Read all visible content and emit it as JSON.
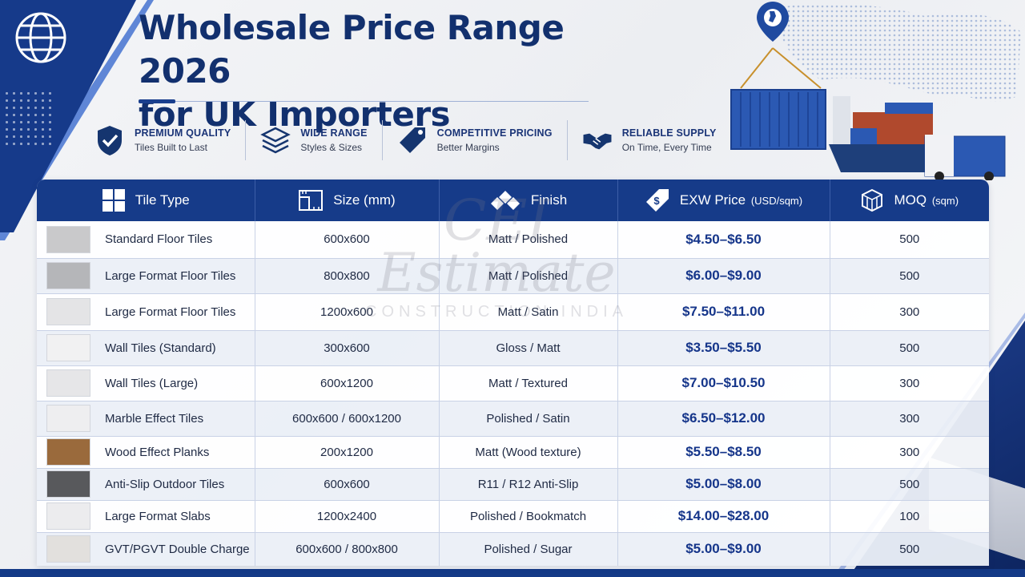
{
  "header": {
    "title_line1": "Wholesale Price Range 2026",
    "title_line2": "for UK Importers"
  },
  "features": [
    {
      "icon": "shield-check-icon",
      "title": "PREMIUM QUALITY",
      "subtitle": "Tiles Built to Last"
    },
    {
      "icon": "layers-icon",
      "title": "WIDE RANGE",
      "subtitle": "Styles & Sizes"
    },
    {
      "icon": "price-tag-icon",
      "title": "COMPETITIVE PRICING",
      "subtitle": "Better Margins"
    },
    {
      "icon": "handshake-icon",
      "title": "RELIABLE SUPPLY",
      "subtitle": "On Time, Every Time"
    }
  ],
  "table": {
    "headers": [
      {
        "icon": "tile-grid-icon",
        "label": "Tile Type",
        "unit": ""
      },
      {
        "icon": "ruler-square-icon",
        "label": "Size (mm)",
        "unit": ""
      },
      {
        "icon": "diamond-tiles-icon",
        "label": "Finish",
        "unit": ""
      },
      {
        "icon": "dollar-tag-icon",
        "label": "EXW Price",
        "unit": "(USD/sqm)"
      },
      {
        "icon": "boxes-icon",
        "label": "MOQ",
        "unit": "(sqm)"
      }
    ],
    "rows": [
      {
        "type": "Standard Floor Tiles",
        "size": "600x600",
        "finish": "Matt / Polished",
        "price": "$4.50–$6.50",
        "moq": "500",
        "swatch": "#c9c9cb"
      },
      {
        "type": "Large Format Floor Tiles",
        "size": "800x800",
        "finish": "Matt / Polished",
        "price": "$6.00–$9.00",
        "moq": "500",
        "swatch": "#b5b6b9"
      },
      {
        "type": "Large Format Floor Tiles",
        "size": "1200x600",
        "finish": "Matt / Satin",
        "price": "$7.50–$11.00",
        "moq": "300",
        "swatch": "#e4e4e6"
      },
      {
        "type": "Wall Tiles (Standard)",
        "size": "300x600",
        "finish": "Gloss / Matt",
        "price": "$3.50–$5.50",
        "moq": "500",
        "swatch": "#f1f1f2"
      },
      {
        "type": "Wall Tiles (Large)",
        "size": "600x1200",
        "finish": "Matt / Textured",
        "price": "$7.00–$10.50",
        "moq": "300",
        "swatch": "#e6e6e8"
      },
      {
        "type": "Marble Effect Tiles",
        "size": "600x600 / 600x1200",
        "finish": "Polished / Satin",
        "price": "$6.50–$12.00",
        "moq": "300",
        "swatch": "#eeeef0"
      },
      {
        "type": "Wood Effect Planks",
        "size": "200x1200",
        "finish": "Matt (Wood texture)",
        "price": "$5.50–$8.50",
        "moq": "300",
        "swatch": "#9a6a3c"
      },
      {
        "type": "Anti-Slip Outdoor Tiles",
        "size": "600x600",
        "finish": "R11 / R12 Anti-Slip",
        "price": "$5.00–$8.00",
        "moq": "500",
        "swatch": "#58595c"
      },
      {
        "type": "Large Format Slabs",
        "size": "1200x2400",
        "finish": "Polished / Bookmatch",
        "price": "$14.00–$28.00",
        "moq": "100",
        "swatch": "#ececee"
      },
      {
        "type": "GVT/PGVT Double Charge",
        "size": "600x600 / 800x800",
        "finish": "Polished / Sugar",
        "price": "$5.00–$9.00",
        "moq": "500",
        "swatch": "#e2e0dd"
      }
    ]
  },
  "watermark": {
    "logo": "CEI",
    "main": "Estimate",
    "sub": "CONSTRUCTION INDIA"
  },
  "colors": {
    "navy": "#163b89",
    "price_text": "#15358a",
    "title_text": "#12306e"
  }
}
